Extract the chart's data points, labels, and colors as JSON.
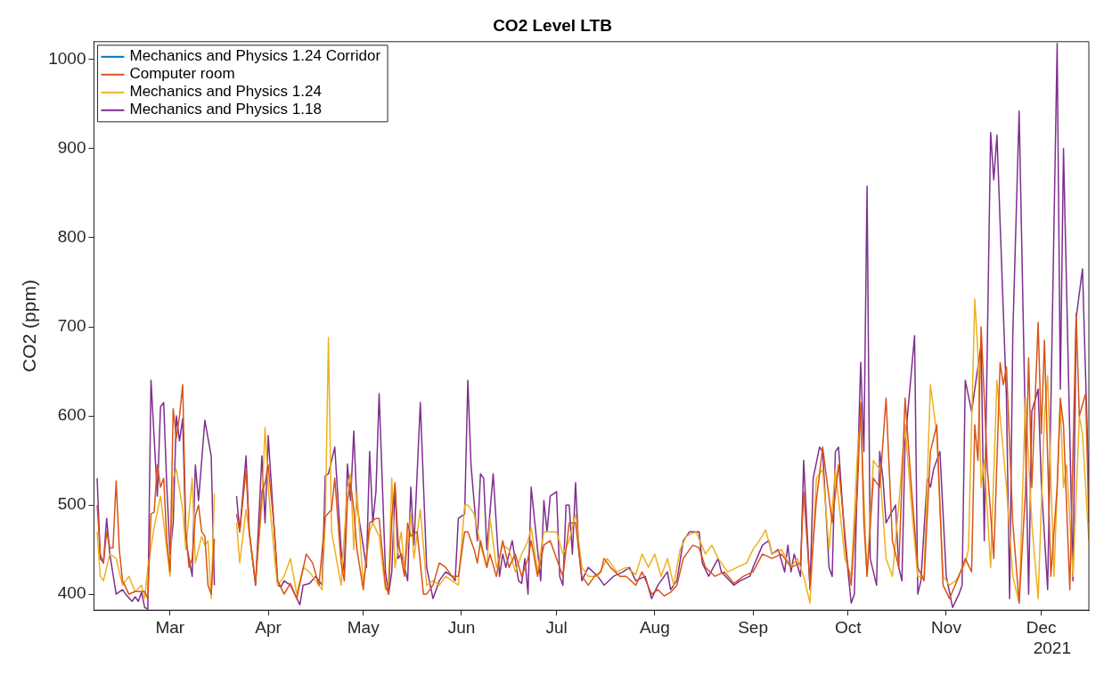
{
  "chart_data": {
    "type": "line",
    "title": "CO2 Level LTB",
    "ylabel": "CO2 (ppm)",
    "xlim": [
      "2021-02-05",
      "2021-12-16"
    ],
    "ylim": [
      382,
      1020
    ],
    "xticks": [
      {
        "value": "2021-03-01",
        "label": "Mar"
      },
      {
        "value": "2021-04-01",
        "label": "Apr"
      },
      {
        "value": "2021-05-01",
        "label": "May"
      },
      {
        "value": "2021-06-01",
        "label": "Jun"
      },
      {
        "value": "2021-07-01",
        "label": "Jul"
      },
      {
        "value": "2021-08-01",
        "label": "Aug"
      },
      {
        "value": "2021-09-01",
        "label": "Sep"
      },
      {
        "value": "2021-10-01",
        "label": "Oct"
      },
      {
        "value": "2021-11-01",
        "label": "Nov"
      },
      {
        "value": "2021-12-01",
        "label": "Dec"
      }
    ],
    "yticks": [
      400,
      500,
      600,
      700,
      800,
      900,
      1000
    ],
    "grid": false,
    "legend": "top left",
    "marker": "none",
    "line_style": "solid",
    "annotations": [
      "2021"
    ],
    "series": [
      {
        "name": "Mechanics and Physics 1.24 Corridor",
        "color": "#0072bd"
      },
      {
        "name": "Computer room",
        "color": "#d95319",
        "x": [
          "2021-02-06",
          "2021-02-07",
          "2021-02-08",
          "2021-02-09",
          "2021-02-10",
          "2021-02-11",
          "2021-02-12",
          "2021-02-13",
          "2021-02-14",
          "2021-02-16",
          "2021-02-18",
          "2021-02-21",
          "2021-02-22",
          "2021-02-23",
          "2021-02-24",
          "2021-02-25",
          "2021-02-26",
          "2021-02-27",
          "2021-02-28",
          "2021-03-01",
          "2021-03-02",
          "2021-03-03",
          "2021-03-04",
          "2021-03-05",
          "2021-03-06",
          "2021-03-07",
          "2021-03-08",
          "2021-03-09",
          "2021-03-10",
          "2021-03-11",
          "2021-03-12",
          "2021-03-13",
          "2021-03-14",
          "2021-03-15",
          "2021-03-19",
          "2021-03-22",
          "2021-03-23",
          "2021-03-25",
          "2021-03-26",
          "2021-03-28",
          "2021-03-30",
          "2021-03-31",
          "2021-04-01",
          "2021-04-03",
          "2021-04-04",
          "2021-04-06",
          "2021-04-08",
          "2021-04-10",
          "2021-04-13",
          "2021-04-15",
          "2021-04-17",
          "2021-04-19",
          "2021-04-21",
          "2021-04-22",
          "2021-04-24",
          "2021-04-25",
          "2021-04-26",
          "2021-04-27",
          "2021-04-28",
          "2021-04-29",
          "2021-05-01",
          "2021-05-03",
          "2021-05-05",
          "2021-05-06",
          "2021-05-08",
          "2021-05-09",
          "2021-05-10",
          "2021-05-11",
          "2021-05-12",
          "2021-05-14",
          "2021-05-15",
          "2021-05-16",
          "2021-05-18",
          "2021-05-20",
          "2021-05-21",
          "2021-05-23",
          "2021-05-25",
          "2021-05-27",
          "2021-05-29",
          "2021-05-31",
          "2021-06-02",
          "2021-06-03",
          "2021-06-05",
          "2021-06-06",
          "2021-06-07",
          "2021-06-09",
          "2021-06-10",
          "2021-06-12",
          "2021-06-14",
          "2021-06-16",
          "2021-06-18",
          "2021-06-20",
          "2021-06-22",
          "2021-06-23",
          "2021-06-25",
          "2021-06-27",
          "2021-06-29",
          "2021-07-01",
          "2021-07-03",
          "2021-07-05",
          "2021-07-07",
          "2021-07-09",
          "2021-07-11",
          "2021-07-13",
          "2021-07-15",
          "2021-07-16",
          "2021-07-18",
          "2021-07-21",
          "2021-07-23",
          "2021-07-26",
          "2021-07-28",
          "2021-07-31",
          "2021-08-02",
          "2021-08-04",
          "2021-08-06",
          "2021-08-08",
          "2021-08-10",
          "2021-08-13",
          "2021-08-15",
          "2021-08-17",
          "2021-08-20",
          "2021-08-23",
          "2021-08-26",
          "2021-08-29",
          "2021-09-01",
          "2021-09-04",
          "2021-09-07",
          "2021-09-10",
          "2021-09-13",
          "2021-09-16",
          "2021-09-17",
          "2021-09-19",
          "2021-09-21",
          "2021-09-23",
          "2021-09-26",
          "2021-09-28",
          "2021-10-01",
          "2021-10-02",
          "2021-10-04",
          "2021-10-05",
          "2021-10-06",
          "2021-10-07",
          "2021-10-09",
          "2021-10-11",
          "2021-10-13",
          "2021-10-15",
          "2021-10-17",
          "2021-10-19",
          "2021-10-21",
          "2021-10-23",
          "2021-10-25",
          "2021-10-27",
          "2021-10-29",
          "2021-10-31",
          "2021-11-02",
          "2021-11-05",
          "2021-11-07",
          "2021-11-09",
          "2021-11-10",
          "2021-11-11",
          "2021-11-12",
          "2021-11-14",
          "2021-11-16",
          "2021-11-18",
          "2021-11-19",
          "2021-11-20",
          "2021-11-22",
          "2021-11-24",
          "2021-11-26",
          "2021-11-27",
          "2021-11-28",
          "2021-11-30",
          "2021-12-01",
          "2021-12-02",
          "2021-12-04",
          "2021-12-06",
          "2021-12-07",
          "2021-12-08",
          "2021-12-10",
          "2021-12-12",
          "2021-12-13",
          "2021-12-15",
          "2021-12-16"
        ],
        "values": [
          500,
          445,
          435,
          470,
          452,
          452,
          527,
          450,
          415,
          400,
          403,
          403,
          395,
          490,
          492,
          545,
          520,
          530,
          460,
          425,
          608,
          575,
          600,
          635,
          470,
          430,
          440,
          488,
          500,
          470,
          465,
          410,
          400,
          462,
          null,
          490,
          470,
          540,
          470,
          412,
          515,
          525,
          545,
          470,
          415,
          400,
          412,
          395,
          445,
          435,
          410,
          487,
          495,
          530,
          435,
          415,
          505,
          525,
          495,
          450,
          405,
          480,
          485,
          485,
          410,
          400,
          485,
          525,
          460,
          420,
          480,
          465,
          470,
          400,
          400,
          410,
          435,
          430,
          420,
          420,
          470,
          470,
          450,
          435,
          460,
          430,
          445,
          420,
          460,
          430,
          445,
          420,
          440,
          460,
          420,
          455,
          460,
          440,
          420,
          480,
          480,
          420,
          410,
          420,
          425,
          440,
          430,
          420,
          420,
          410,
          425,
          400,
          405,
          398,
          402,
          410,
          440,
          455,
          452,
          430,
          420,
          425,
          412,
          420,
          425,
          445,
          440,
          445,
          430,
          435,
          515,
          410,
          505,
          565,
          480,
          545,
          430,
          410,
          520,
          615,
          480,
          420,
          530,
          520,
          620,
          460,
          430,
          620,
          520,
          430,
          415,
          560,
          590,
          410,
          395,
          420,
          440,
          425,
          590,
          550,
          700,
          540,
          440,
          660,
          635,
          655,
          480,
          390,
          515,
          665,
          520,
          705,
          580,
          685,
          420,
          520,
          620,
          590,
          405,
          715,
          600,
          625,
          480
        ]
      },
      {
        "name": "Mechanics and Physics 1.24",
        "color": "#edb120",
        "x": [
          "2021-02-06",
          "2021-02-07",
          "2021-02-08",
          "2021-02-10",
          "2021-02-12",
          "2021-02-14",
          "2021-02-16",
          "2021-02-18",
          "2021-02-20",
          "2021-02-21",
          "2021-02-22",
          "2021-02-24",
          "2021-02-26",
          "2021-02-28",
          "2021-03-01",
          "2021-03-02",
          "2021-03-03",
          "2021-03-05",
          "2021-03-06",
          "2021-03-08",
          "2021-03-09",
          "2021-03-11",
          "2021-03-12",
          "2021-03-13",
          "2021-03-14",
          "2021-03-15",
          "2021-03-19",
          "2021-03-22",
          "2021-03-23",
          "2021-03-25",
          "2021-03-26",
          "2021-03-28",
          "2021-03-30",
          "2021-03-31",
          "2021-04-01",
          "2021-04-03",
          "2021-04-04",
          "2021-04-06",
          "2021-04-08",
          "2021-04-10",
          "2021-04-12",
          "2021-04-14",
          "2021-04-16",
          "2021-04-18",
          "2021-04-19",
          "2021-04-20",
          "2021-04-21",
          "2021-04-23",
          "2021-04-24",
          "2021-04-26",
          "2021-04-27",
          "2021-04-28",
          "2021-04-29",
          "2021-05-01",
          "2021-05-03",
          "2021-05-04",
          "2021-05-06",
          "2021-05-08",
          "2021-05-09",
          "2021-05-10",
          "2021-05-11",
          "2021-05-13",
          "2021-05-14",
          "2021-05-16",
          "2021-05-17",
          "2021-05-19",
          "2021-05-21",
          "2021-05-23",
          "2021-05-25",
          "2021-05-27",
          "2021-05-29",
          "2021-05-31",
          "2021-06-02",
          "2021-06-03",
          "2021-06-05",
          "2021-06-07",
          "2021-06-09",
          "2021-06-10",
          "2021-06-12",
          "2021-06-14",
          "2021-06-16",
          "2021-06-18",
          "2021-06-20",
          "2021-06-22",
          "2021-06-23",
          "2021-06-25",
          "2021-06-27",
          "2021-06-29",
          "2021-07-01",
          "2021-07-03",
          "2021-07-05",
          "2021-07-07",
          "2021-07-09",
          "2021-07-11",
          "2021-07-14",
          "2021-07-17",
          "2021-07-20",
          "2021-07-23",
          "2021-07-26",
          "2021-07-28",
          "2021-07-30",
          "2021-08-01",
          "2021-08-03",
          "2021-08-05",
          "2021-08-07",
          "2021-08-09",
          "2021-08-11",
          "2021-08-14",
          "2021-08-17",
          "2021-08-19",
          "2021-08-21",
          "2021-08-24",
          "2021-08-27",
          "2021-08-30",
          "2021-09-01",
          "2021-09-03",
          "2021-09-05",
          "2021-09-07",
          "2021-09-10",
          "2021-09-13",
          "2021-09-15",
          "2021-09-17",
          "2021-09-19",
          "2021-09-21",
          "2021-09-23",
          "2021-09-25",
          "2021-09-27",
          "2021-09-30",
          "2021-10-02",
          "2021-10-04",
          "2021-10-05",
          "2021-10-07",
          "2021-10-09",
          "2021-10-11",
          "2021-10-13",
          "2021-10-15",
          "2021-10-17",
          "2021-10-19",
          "2021-10-21",
          "2021-10-23",
          "2021-10-25",
          "2021-10-27",
          "2021-10-29",
          "2021-10-31",
          "2021-11-02",
          "2021-11-04",
          "2021-11-07",
          "2021-11-08",
          "2021-11-10",
          "2021-11-11",
          "2021-11-12",
          "2021-11-13",
          "2021-11-15",
          "2021-11-17",
          "2021-11-18",
          "2021-11-20",
          "2021-11-22",
          "2021-11-24",
          "2021-11-26",
          "2021-11-28",
          "2021-11-30",
          "2021-12-02",
          "2021-12-03",
          "2021-12-05",
          "2021-12-07",
          "2021-12-08",
          "2021-12-09",
          "2021-12-11",
          "2021-12-13",
          "2021-12-14",
          "2021-12-16"
        ],
        "values": [
          470,
          420,
          415,
          445,
          440,
          410,
          420,
          403,
          410,
          395,
          430,
          475,
          510,
          450,
          420,
          530,
          540,
          495,
          450,
          530,
          435,
          465,
          455,
          460,
          395,
          513,
          null,
          480,
          435,
          495,
          470,
          415,
          500,
          587,
          520,
          440,
          410,
          420,
          440,
          400,
          430,
          425,
          415,
          405,
          480,
          688,
          470,
          430,
          410,
          520,
          535,
          450,
          515,
          410,
          470,
          480,
          465,
          405,
          410,
          530,
          430,
          470,
          425,
          490,
          440,
          495,
          410,
          415,
          410,
          420,
          415,
          410,
          500,
          500,
          490,
          455,
          430,
          485,
          430,
          455,
          450,
          425,
          445,
          460,
          475,
          425,
          470,
          470,
          470,
          445,
          460,
          490,
          430,
          420,
          420,
          440,
          425,
          430,
          422,
          445,
          430,
          445,
          420,
          440,
          410,
          450,
          465,
          470,
          445,
          455,
          440,
          425,
          430,
          435,
          450,
          460,
          472,
          445,
          450,
          430,
          440,
          420,
          390,
          530,
          540,
          450,
          540,
          440,
          420,
          560,
          600,
          420,
          550,
          540,
          440,
          420,
          500,
          590,
          500,
          420,
          420,
          635,
          580,
          420,
          410,
          415,
          435,
          450,
          731,
          670,
          520,
          550,
          430,
          640,
          600,
          520,
          420,
          390,
          620,
          480,
          395,
          600,
          645,
          420,
          615,
          520,
          545,
          420,
          600,
          580,
          460
        ]
      },
      {
        "name": "Mechanics and Physics 1.18",
        "color": "#7e2f8e",
        "x": [
          "2021-02-06",
          "2021-02-07",
          "2021-02-08",
          "2021-02-09",
          "2021-02-10",
          "2021-02-12",
          "2021-02-14",
          "2021-02-15",
          "2021-02-17",
          "2021-02-18",
          "2021-02-19",
          "2021-02-20",
          "2021-02-21",
          "2021-02-22",
          "2021-02-23",
          "2021-02-25",
          "2021-02-26",
          "2021-02-27",
          "2021-02-28",
          "2021-03-01",
          "2021-03-02",
          "2021-03-03",
          "2021-03-04",
          "2021-03-05",
          "2021-03-06",
          "2021-03-08",
          "2021-03-09",
          "2021-03-10",
          "2021-03-12",
          "2021-03-14",
          "2021-03-15",
          "2021-03-19",
          "2021-03-22",
          "2021-03-23",
          "2021-03-25",
          "2021-03-26",
          "2021-03-28",
          "2021-03-30",
          "2021-03-31",
          "2021-04-01",
          "2021-04-04",
          "2021-04-05",
          "2021-04-06",
          "2021-04-08",
          "2021-04-11",
          "2021-04-12",
          "2021-04-14",
          "2021-04-16",
          "2021-04-18",
          "2021-04-19",
          "2021-04-20",
          "2021-04-22",
          "2021-04-24",
          "2021-04-25",
          "2021-04-26",
          "2021-04-27",
          "2021-04-28",
          "2021-04-29",
          "2021-05-02",
          "2021-05-03",
          "2021-05-04",
          "2021-05-05",
          "2021-05-06",
          "2021-05-08",
          "2021-05-09",
          "2021-05-10",
          "2021-05-11",
          "2021-05-12",
          "2021-05-13",
          "2021-05-15",
          "2021-05-16",
          "2021-05-17",
          "2021-05-19",
          "2021-05-21",
          "2021-05-23",
          "2021-05-25",
          "2021-05-27",
          "2021-05-29",
          "2021-05-30",
          "2021-05-31",
          "2021-06-02",
          "2021-06-03",
          "2021-06-04",
          "2021-06-06",
          "2021-06-07",
          "2021-06-08",
          "2021-06-09",
          "2021-06-11",
          "2021-06-13",
          "2021-06-14",
          "2021-06-15",
          "2021-06-17",
          "2021-06-19",
          "2021-06-20",
          "2021-06-21",
          "2021-06-22",
          "2021-06-23",
          "2021-06-26",
          "2021-06-27",
          "2021-06-28",
          "2021-06-29",
          "2021-07-01",
          "2021-07-02",
          "2021-07-03",
          "2021-07-04",
          "2021-07-05",
          "2021-07-06",
          "2021-07-07",
          "2021-07-08",
          "2021-07-09",
          "2021-07-11",
          "2021-07-14",
          "2021-07-16",
          "2021-07-19",
          "2021-07-22",
          "2021-07-24",
          "2021-07-26",
          "2021-07-29",
          "2021-07-31",
          "2021-08-02",
          "2021-08-05",
          "2021-08-06",
          "2021-08-08",
          "2021-08-10",
          "2021-08-12",
          "2021-08-15",
          "2021-08-16",
          "2021-08-18",
          "2021-08-21",
          "2021-08-22",
          "2021-08-26",
          "2021-08-28",
          "2021-08-31",
          "2021-09-01",
          "2021-09-04",
          "2021-09-06",
          "2021-09-07",
          "2021-09-09",
          "2021-09-11",
          "2021-09-12",
          "2021-09-13",
          "2021-09-14",
          "2021-09-16",
          "2021-09-17",
          "2021-09-19",
          "2021-09-20",
          "2021-09-22",
          "2021-09-23",
          "2021-09-25",
          "2021-09-26",
          "2021-09-27",
          "2021-09-28",
          "2021-09-30",
          "2021-10-02",
          "2021-10-03",
          "2021-10-04",
          "2021-10-05",
          "2021-10-06",
          "2021-10-07",
          "2021-10-08",
          "2021-10-10",
          "2021-10-11",
          "2021-10-12",
          "2021-10-13",
          "2021-10-16",
          "2021-10-17",
          "2021-10-18",
          "2021-10-19",
          "2021-10-22",
          "2021-10-23",
          "2021-10-24",
          "2021-10-26",
          "2021-10-27",
          "2021-10-28",
          "2021-10-30",
          "2021-11-01",
          "2021-11-03",
          "2021-11-05",
          "2021-11-06",
          "2021-11-07",
          "2021-11-09",
          "2021-11-12",
          "2021-11-13",
          "2021-11-15",
          "2021-11-16",
          "2021-11-17",
          "2021-11-20",
          "2021-11-21",
          "2021-11-22",
          "2021-11-24",
          "2021-11-26",
          "2021-11-27",
          "2021-11-28",
          "2021-11-30",
          "2021-12-01",
          "2021-12-03",
          "2021-12-06",
          "2021-12-07",
          "2021-12-08",
          "2021-12-11",
          "2021-12-12",
          "2021-12-14",
          "2021-12-16"
        ],
        "values": [
          530,
          440,
          435,
          485,
          445,
          400,
          405,
          400,
          392,
          397,
          392,
          402,
          385,
          383,
          640,
          510,
          610,
          615,
          520,
          445,
          480,
          600,
          572,
          597,
          460,
          420,
          545,
          505,
          595,
          555,
          410,
          null,
          510,
          470,
          555,
          470,
          410,
          555,
          480,
          578,
          410,
          408,
          415,
          410,
          388,
          410,
          412,
          420,
          410,
          533,
          535,
          565,
          450,
          425,
          546,
          505,
          583,
          500,
          430,
          560,
          480,
          515,
          625,
          425,
          400,
          425,
          520,
          440,
          445,
          415,
          520,
          455,
          615,
          430,
          395,
          415,
          425,
          420,
          415,
          485,
          490,
          640,
          545,
          460,
          535,
          530,
          450,
          535,
          420,
          445,
          430,
          460,
          415,
          412,
          440,
          400,
          520,
          415,
          505,
          470,
          510,
          515,
          420,
          410,
          500,
          500,
          445,
          525,
          450,
          415,
          430,
          420,
          410,
          420,
          425,
          430,
          415,
          420,
          395,
          410,
          425,
          405,
          415,
          460,
          470,
          470,
          435,
          420,
          440,
          425,
          410,
          415,
          420,
          430,
          455,
          460,
          445,
          450,
          425,
          455,
          425,
          445,
          420,
          550,
          405,
          530,
          565,
          560,
          430,
          420,
          560,
          565,
          460,
          390,
          400,
          540,
          660,
          560,
          858,
          440,
          410,
          560,
          530,
          480,
          500,
          430,
          415,
          570,
          690,
          400,
          415,
          530,
          520,
          540,
          560,
          420,
          385,
          400,
          410,
          640,
          605,
          680,
          460,
          918,
          865,
          915,
          620,
          395,
          690,
          942,
          580,
          400,
          605,
          630,
          525,
          405,
          1018,
          630,
          900,
          415,
          710,
          765,
          520
        ]
      }
    ]
  }
}
